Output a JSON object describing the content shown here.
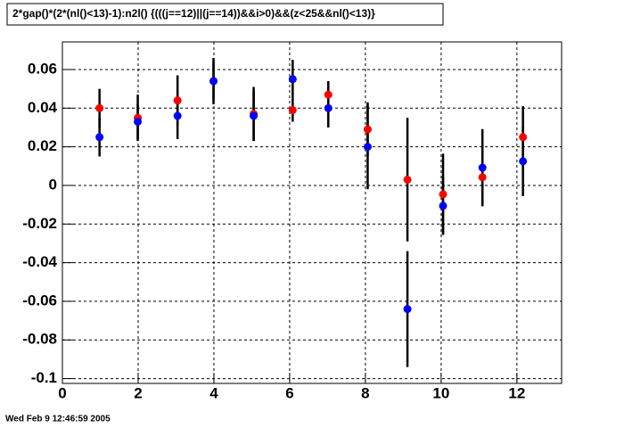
{
  "chart_data": {
    "type": "scatter",
    "title": "2*gap()*(2*(nl()<13)-1):n2l() {(((j==12)||(j==14))&&i>0)&&(z<25&&nl()<13)}",
    "footer": "Wed Feb  9 12:46:59 2005",
    "x": [
      0.98,
      1.99,
      3.04,
      3.99,
      5.05,
      6.08,
      7.02,
      8.06,
      9.11,
      10.05,
      11.09,
      12.16
    ],
    "series": [
      {
        "color": "#ff0000",
        "values": [
          0.04,
          0.035,
          0.044,
          0.054,
          0.037,
          0.039,
          0.047,
          0.029,
          0.003,
          -0.0046,
          0.0042,
          0.025
        ],
        "errors": [
          0.01,
          0.012,
          0.013,
          0.01,
          0.014,
          0.006,
          0.007,
          0.014,
          0.032,
          0.021,
          0.014,
          0.016
        ]
      },
      {
        "color": "#0000ff",
        "values": [
          0.025,
          0.033,
          0.036,
          0.054,
          0.036,
          0.055,
          0.04,
          0.02,
          -0.064,
          -0.0106,
          0.0092,
          0.0125
        ],
        "errors": [
          0.01,
          0.009,
          0.012,
          0.012,
          0.013,
          0.01,
          0.01,
          0.022,
          0.03,
          0.015,
          0.02,
          0.018
        ]
      }
    ],
    "xlim": [
      0,
      13.18
    ],
    "ylim": [
      -0.1025,
      0.0743
    ],
    "xticks": [
      0,
      2,
      4,
      6,
      8,
      10,
      12
    ],
    "yticks": [
      -0.1,
      -0.08,
      -0.06,
      -0.04,
      -0.02,
      0,
      0.02,
      0.04,
      0.06
    ],
    "grid": true,
    "errorbar_color": "#000000"
  }
}
